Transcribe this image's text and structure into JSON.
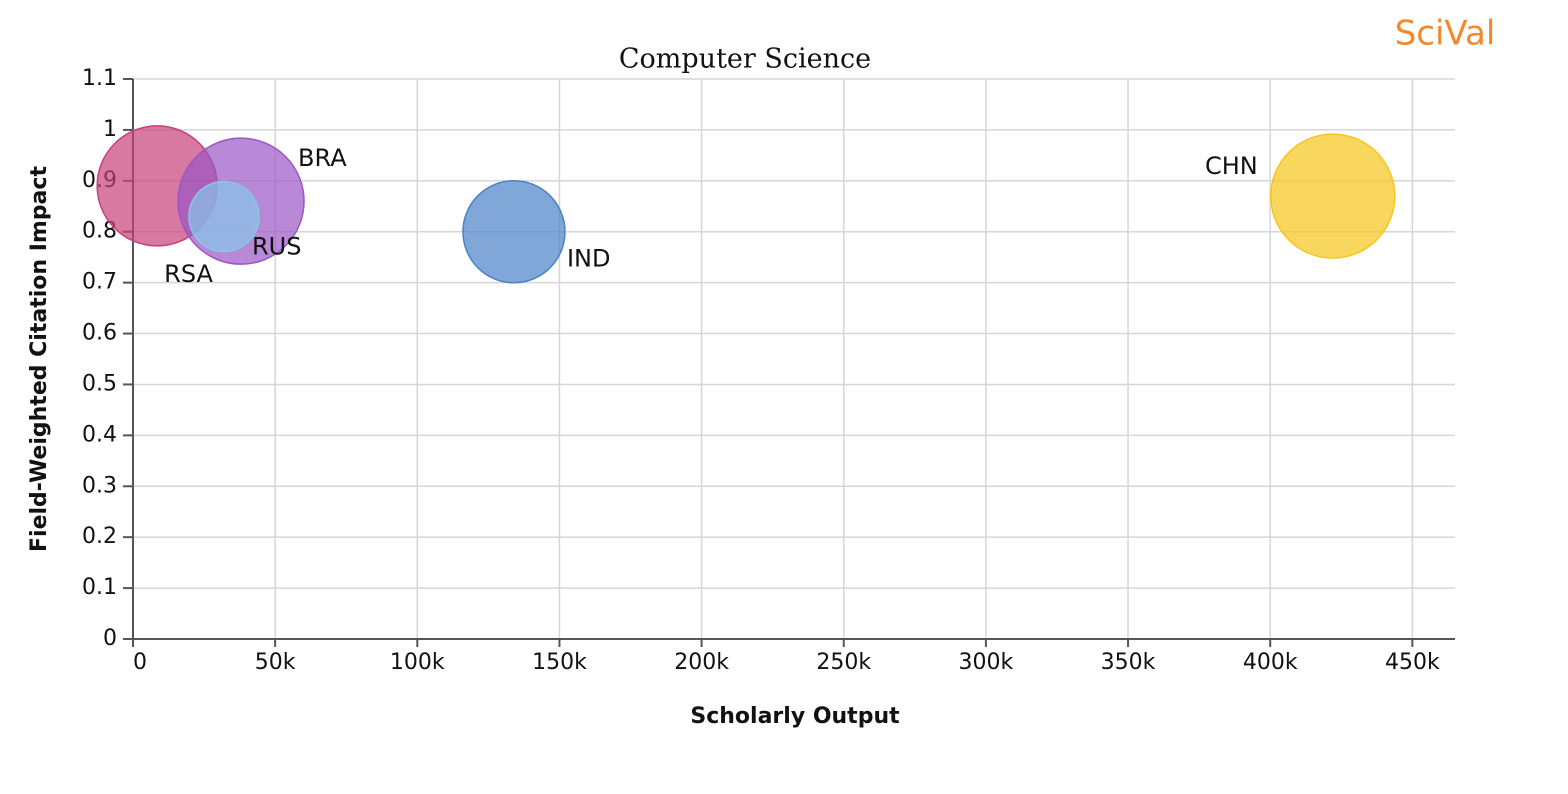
{
  "brand": "SciVal",
  "chart_data": {
    "type": "bubble",
    "title": "Computer Science",
    "x_label": "Scholarly Output",
    "y_label": "Field-Weighted Citation Impact",
    "xlim": [
      0,
      465000
    ],
    "ylim": [
      0,
      1.1
    ],
    "xticks": [
      0,
      {
        "value": 50000,
        "label": "50k"
      },
      {
        "value": 100000,
        "label": "100k"
      },
      {
        "value": 150000,
        "label": "150k"
      },
      {
        "value": 200000,
        "label": "200k"
      },
      {
        "value": 250000,
        "label": "250k"
      },
      {
        "value": 300000,
        "label": "300k"
      },
      {
        "value": 350000,
        "label": "350k"
      },
      {
        "value": 400000,
        "label": "400k"
      },
      {
        "value": 450000,
        "label": "450k"
      }
    ],
    "yticks": [
      0,
      0.1,
      0.2,
      0.3,
      0.4,
      0.5,
      0.6,
      0.7,
      0.8,
      0.9,
      1,
      1.1
    ],
    "grid": true,
    "series": [
      {
        "name": "RSA",
        "color": "#c8407a",
        "x": [
          8500
        ],
        "values": [
          0.89
        ],
        "sizes": [
          60
        ]
      },
      {
        "name": "BRA",
        "color": "#9b55c4",
        "x": [
          38000
        ],
        "values": [
          0.86
        ],
        "sizes": [
          63
        ]
      },
      {
        "name": "RUS",
        "color": "#86c8ea",
        "x": [
          32000
        ],
        "values": [
          0.83
        ],
        "sizes": [
          35
        ]
      },
      {
        "name": "IND",
        "color": "#4a82c8",
        "x": [
          134000
        ],
        "values": [
          0.8
        ],
        "sizes": [
          51
        ]
      },
      {
        "name": "CHN",
        "color": "#f6c619",
        "x": [
          422000
        ],
        "values": [
          0.87
        ],
        "sizes": [
          62
        ]
      }
    ]
  }
}
